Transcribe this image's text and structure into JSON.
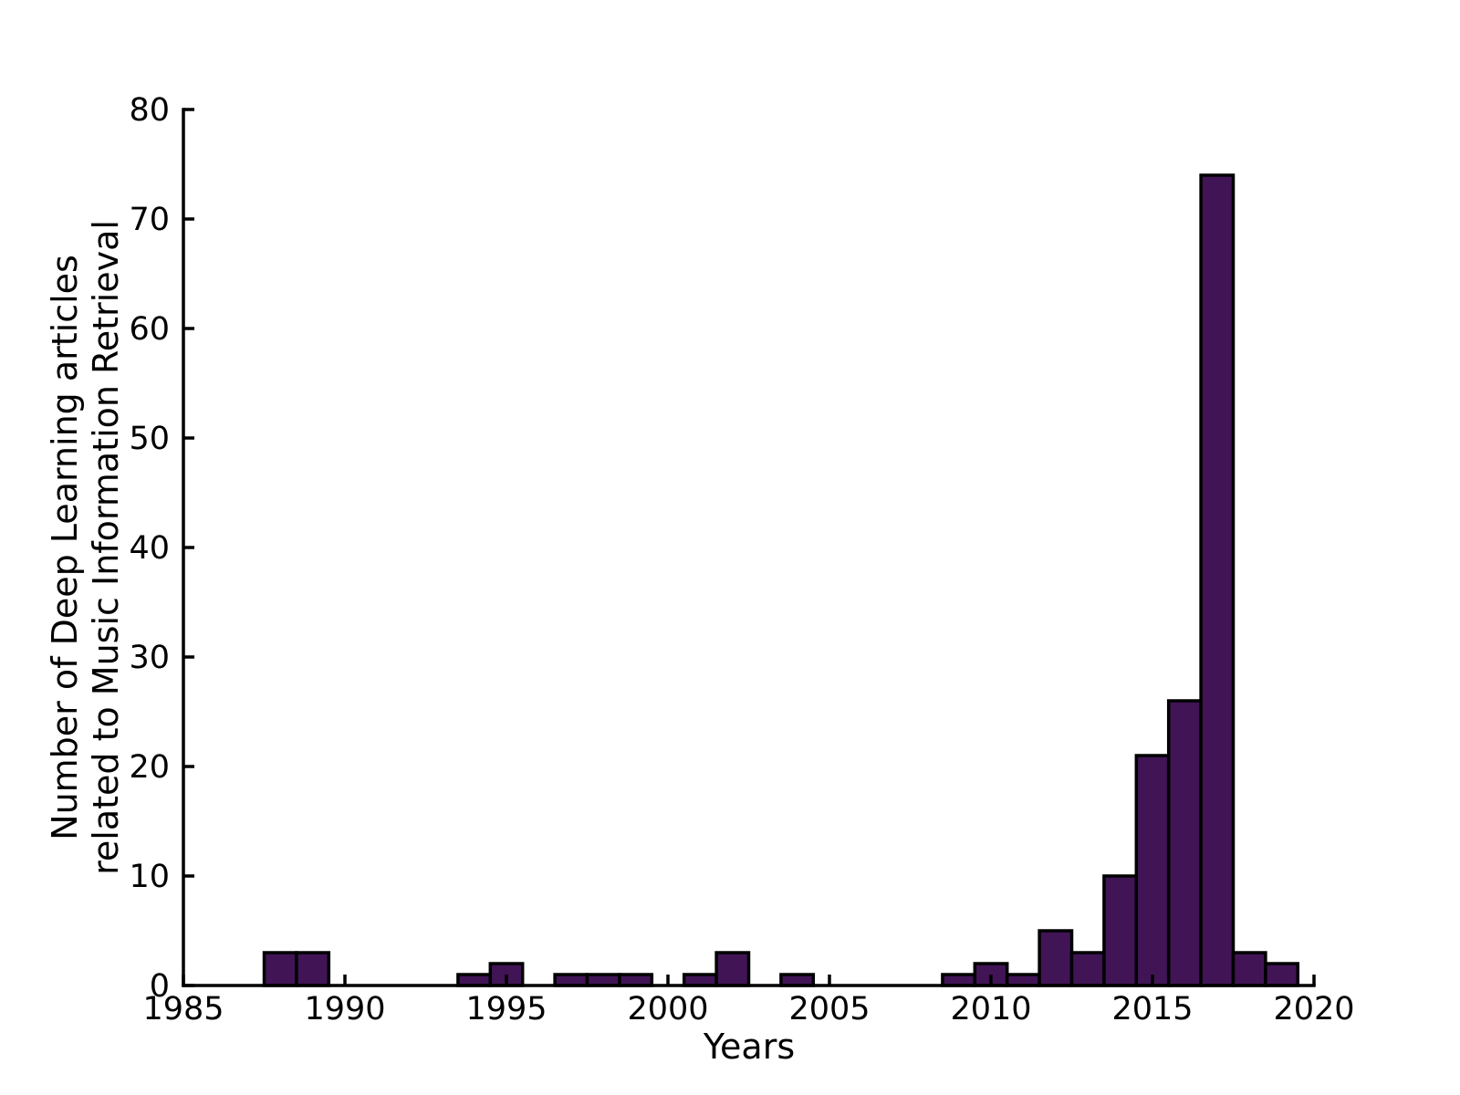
{
  "figure": {
    "background": "#ffffff"
  },
  "chart_data": {
    "type": "bar",
    "title": "",
    "xlabel": "Years",
    "ylabel": "Number of Deep Learning articles\nrelated to Music Information Retrieval",
    "ylabel_lines": [
      "Number of Deep Learning articles",
      "related to Music Information Retrieval"
    ],
    "categories": [
      1988,
      1989,
      1990,
      1991,
      1992,
      1993,
      1994,
      1995,
      1996,
      1997,
      1998,
      1999,
      2000,
      2001,
      2002,
      2003,
      2004,
      2005,
      2006,
      2007,
      2008,
      2009,
      2010,
      2011,
      2012,
      2013,
      2014,
      2015,
      2016,
      2017,
      2018,
      2019
    ],
    "values": [
      3,
      3,
      0,
      0,
      0,
      0,
      1,
      2,
      0,
      1,
      1,
      1,
      0,
      1,
      3,
      0,
      1,
      0,
      0,
      0,
      0,
      1,
      2,
      1,
      5,
      3,
      10,
      21,
      26,
      74,
      3,
      2
    ],
    "bin_width_years": 1,
    "xlim": [
      1985,
      2020
    ],
    "ylim": [
      0,
      80
    ],
    "xticks": [
      1985,
      1990,
      1995,
      2000,
      2005,
      2010,
      2015,
      2020
    ],
    "yticks": [
      0,
      10,
      20,
      30,
      40,
      50,
      60,
      70,
      80
    ],
    "bar_fill": "#411456",
    "bar_edge": "#000000",
    "axis_color": "#000000",
    "grid": false,
    "legend": "none"
  }
}
